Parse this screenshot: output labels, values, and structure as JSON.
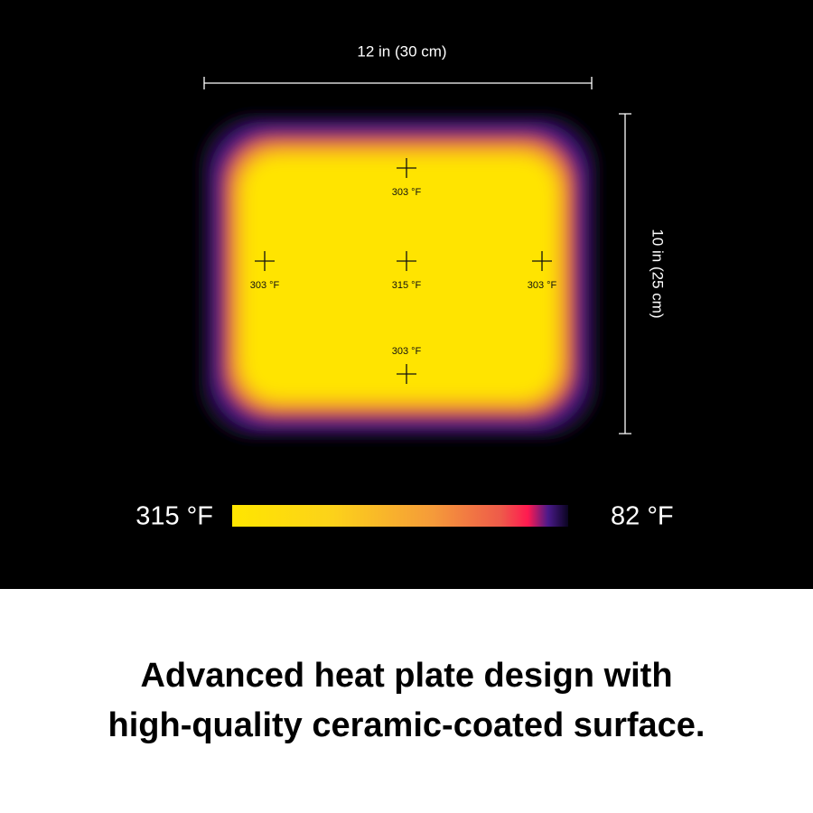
{
  "dimensions": {
    "width": "12 in (30 cm)",
    "height": "10 in (25 cm)"
  },
  "points": [
    {
      "label": "303 °F"
    },
    {
      "label": "303 °F"
    },
    {
      "label": "315 °F"
    },
    {
      "label": "303 °F"
    },
    {
      "label": "303 °F"
    }
  ],
  "scale": {
    "max": "315 °F",
    "min": "82 °F"
  },
  "caption": [
    "Advanced heat plate design with",
    "high-quality ceramic-coated surface."
  ]
}
